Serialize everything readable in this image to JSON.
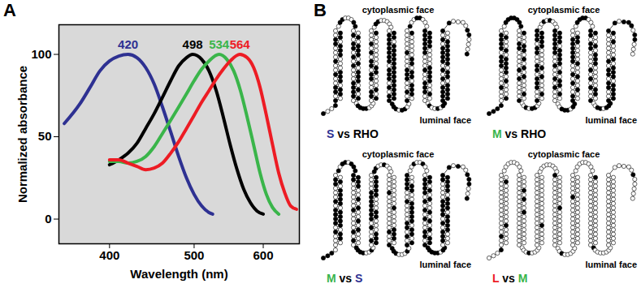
{
  "chart_data": {
    "type": "line",
    "title": "A",
    "xlabel": "Wavelength (nm)",
    "ylabel": "Normalized absorbance",
    "log": "x",
    "xlim": [
      350,
      660
    ],
    "xticks": [
      400,
      500,
      600
    ],
    "ylim": [
      -15,
      118
    ],
    "yticks": [
      0,
      50,
      100
    ],
    "series": [
      {
        "name": "420",
        "color": "#2e3192",
        "x": [
          355,
          370,
          380,
          390,
          400,
          410,
          420,
          430,
          440,
          450,
          460,
          470,
          480,
          490,
          500,
          510,
          520,
          525
        ],
        "values": [
          58,
          70,
          80,
          90,
          96,
          99,
          100,
          98,
          92,
          82,
          68,
          53,
          38,
          25,
          15,
          8,
          4,
          3
        ]
      },
      {
        "name": "498",
        "color": "#000000",
        "x": [
          400,
          410,
          420,
          430,
          440,
          450,
          460,
          470,
          480,
          490,
          498,
          510,
          520,
          530,
          540,
          550,
          560,
          570,
          580,
          590,
          600
        ],
        "values": [
          33,
          36,
          40,
          46,
          55,
          64,
          74,
          84,
          93,
          98,
          100,
          97,
          90,
          78,
          62,
          45,
          30,
          18,
          10,
          5,
          3
        ]
      },
      {
        "name": "534",
        "color": "#3ab54a",
        "x": [
          400,
          410,
          420,
          430,
          440,
          450,
          460,
          470,
          480,
          490,
          500,
          510,
          520,
          534,
          545,
          555,
          565,
          575,
          585,
          595,
          605,
          615,
          625
        ],
        "values": [
          35,
          35,
          34,
          35,
          38,
          44,
          52,
          60,
          68,
          76,
          84,
          91,
          96,
          100,
          97,
          90,
          78,
          62,
          45,
          28,
          15,
          7,
          3
        ]
      },
      {
        "name": "564",
        "color": "#ed1c24",
        "x": [
          400,
          410,
          420,
          430,
          440,
          450,
          460,
          470,
          480,
          490,
          500,
          510,
          520,
          530,
          540,
          550,
          564,
          575,
          585,
          595,
          605,
          615,
          625,
          635,
          645,
          655
        ],
        "values": [
          36,
          36,
          34,
          32,
          30,
          31,
          34,
          40,
          47,
          55,
          63,
          71,
          78,
          85,
          91,
          96,
          100,
          98,
          92,
          80,
          63,
          45,
          28,
          16,
          8,
          6
        ]
      }
    ]
  },
  "diagram": {
    "label": "B",
    "panels": [
      {
        "top_label": "cytoplasmic face",
        "bottom_label": "luminal face",
        "caption": [
          {
            "text": "S",
            "color": "#2e3192"
          },
          {
            "text": "vs",
            "color": "#000000"
          },
          {
            "text": "RHO",
            "color": "#000000"
          }
        ],
        "filled_share": 0.55
      },
      {
        "top_label": "cytoplasmic face",
        "bottom_label": "luminal face",
        "caption": [
          {
            "text": "M",
            "color": "#3ab54a"
          },
          {
            "text": "vs",
            "color": "#000000"
          },
          {
            "text": "RHO",
            "color": "#000000"
          }
        ],
        "filled_share": 0.55
      },
      {
        "top_label": "cytoplasmic face",
        "bottom_label": "luminal face",
        "caption": [
          {
            "text": "M",
            "color": "#3ab54a"
          },
          {
            "text": "vs",
            "color": "#000000"
          },
          {
            "text": "S",
            "color": "#2e3192"
          }
        ],
        "filled_share": 0.5
      },
      {
        "top_label": "cytoplasmic face",
        "bottom_label": "luminal face",
        "caption": [
          {
            "text": "L",
            "color": "#ed1c24"
          },
          {
            "text": "vs",
            "color": "#000000"
          },
          {
            "text": "M",
            "color": "#3ab54a"
          }
        ],
        "filled_share": 0.06
      }
    ]
  }
}
